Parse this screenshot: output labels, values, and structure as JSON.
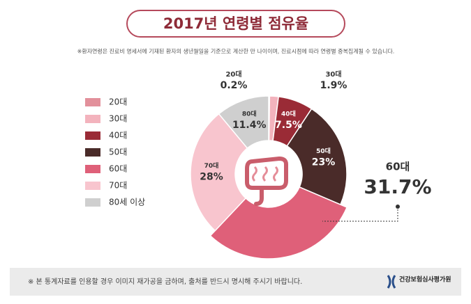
{
  "chart_data": {
    "type": "donut",
    "title": "2017년 연령별 점유율",
    "subtitle": "※환자연령은 진료비 명세서에 기재된 환자의 생년월일을 기준으로 계산한 만 나이이며, 진료시점에 따라 연령별 중복집계될 수 있습니다.",
    "categories": [
      "20대",
      "30대",
      "40대",
      "50대",
      "60대",
      "70대",
      "80대"
    ],
    "values": [
      0.2,
      1.9,
      7.5,
      23,
      31.7,
      28,
      11.4
    ],
    "value_labels": [
      "0.2%",
      "1.9%",
      "7.5%",
      "23%",
      "31.7%",
      "28%",
      "11.4%"
    ],
    "colors": [
      "#e2909b",
      "#f3b3bd",
      "#9a2b36",
      "#4a2b29",
      "#df6079",
      "#f8c5ce",
      "#cfcfcf"
    ],
    "legend": [
      "20대",
      "30대",
      "40대",
      "50대",
      "60대",
      "70대",
      "80세 이상"
    ],
    "footer": "※ 본 통계자료를 인용할 경우 이미지 재가공을 금하며, 출처를 반드시 명시해 주시기 바랍니다.",
    "source": "건강보험심사평가원"
  }
}
